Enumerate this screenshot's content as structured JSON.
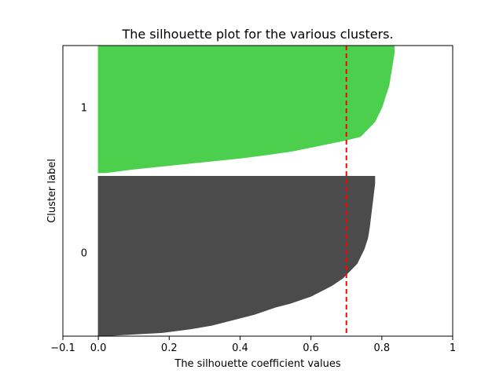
{
  "chart_data": {
    "type": "area",
    "title": "The silhouette plot for the various clusters.",
    "xlabel": "The silhouette coefficient values",
    "ylabel": "Cluster label",
    "xlim": [
      -0.1,
      1.0
    ],
    "xticks": [
      -0.1,
      0.0,
      0.2,
      0.4,
      0.6,
      0.8,
      1.0
    ],
    "xtick_labels": [
      "−0.1",
      "0.0",
      "0.2",
      "0.4",
      "0.6",
      "0.8",
      "1"
    ],
    "ylim": [
      0,
      80
    ],
    "grid": false,
    "legend": "none",
    "average_silhouette_score": 0.7,
    "series": [
      {
        "name": "0",
        "color": "#4b4b4b",
        "y_start": 0,
        "y_end": 44,
        "y_label_pos": 23,
        "x": [
          0.0,
          0.18,
          0.26,
          0.32,
          0.36,
          0.4,
          0.44,
          0.47,
          0.5,
          0.54,
          0.57,
          0.6,
          0.62,
          0.64,
          0.66,
          0.69,
          0.71,
          0.73,
          0.74,
          0.75,
          0.76,
          0.765,
          0.77,
          0.775,
          0.78,
          0.78
        ],
        "y": [
          0,
          1,
          2,
          3,
          4,
          5,
          6,
          7,
          8,
          9,
          10,
          11,
          12,
          13,
          14,
          16,
          18,
          20,
          22,
          24,
          27,
          30,
          34,
          38,
          42,
          44
        ]
      },
      {
        "name": "1",
        "color": "#4ccf4c",
        "y_start": 45,
        "y_end": 80,
        "y_label_pos": 63,
        "x": [
          0.02,
          0.1,
          0.2,
          0.3,
          0.4,
          0.48,
          0.55,
          0.6,
          0.65,
          0.7,
          0.74,
          0.76,
          0.78,
          0.79,
          0.8,
          0.81,
          0.82,
          0.825,
          0.83,
          0.835,
          0.835
        ],
        "y": [
          45,
          46,
          47,
          48,
          49,
          50,
          51,
          52,
          53,
          54,
          55,
          57,
          59,
          61,
          63,
          66,
          69,
          72,
          75,
          78,
          80
        ]
      }
    ]
  }
}
